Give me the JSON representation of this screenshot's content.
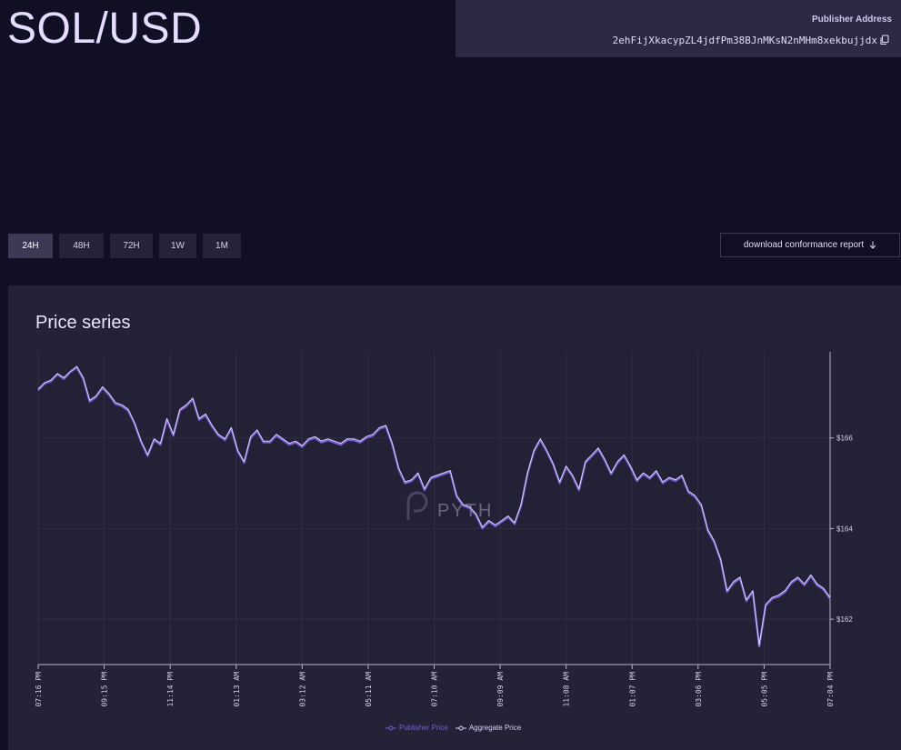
{
  "header": {
    "title": "SOL/USD",
    "publisher_label": "Publisher Address",
    "publisher_address": "2ehFijXkacypZL4jdfPm38BJnMKsN2nMHm8xekbujjdx",
    "copy_icon": "copy-icon"
  },
  "time_ranges": [
    {
      "label": "24H",
      "active": true
    },
    {
      "label": "48H",
      "active": false
    },
    {
      "label": "72H",
      "active": false
    },
    {
      "label": "1W",
      "active": false
    },
    {
      "label": "1M",
      "active": false
    }
  ],
  "download_button": {
    "label": "download conformance report",
    "icon": "arrow-down-icon"
  },
  "panel": {
    "title": "Price series"
  },
  "watermark": {
    "text": "PYTH",
    "icon": "pyth-logo-icon"
  },
  "colors": {
    "publisher": "#7a5fd6",
    "aggregate": "#d9d2ff",
    "grid": "#302e45"
  },
  "chart_data": {
    "type": "line",
    "x_tick_labels": [
      "07:16 PM",
      "09:15 PM",
      "11:14 PM",
      "01:13 AM",
      "03:12 AM",
      "05:11 AM",
      "07:10 AM",
      "09:09 AM",
      "11:08 AM",
      "01:07 PM",
      "03:06 PM",
      "05:05 PM",
      "07:04 PM"
    ],
    "y_ticks": [
      162,
      164,
      166
    ],
    "y_tick_labels": [
      "$162",
      "$164",
      "$166"
    ],
    "ylim": [
      161,
      167.9
    ],
    "grid": true,
    "legend_placement": "bottom-center",
    "series": [
      {
        "name": "Publisher Price",
        "values": [
          167.05,
          167.2,
          167.25,
          167.4,
          167.3,
          167.45,
          167.55,
          167.3,
          166.8,
          166.9,
          167.1,
          166.95,
          166.75,
          166.7,
          166.6,
          166.3,
          165.9,
          165.6,
          165.95,
          165.85,
          166.4,
          166.05,
          166.6,
          166.7,
          166.85,
          166.4,
          166.5,
          166.25,
          166.05,
          165.95,
          166.2,
          165.7,
          165.45,
          166.0,
          166.15,
          165.9,
          165.9,
          166.05,
          165.95,
          165.85,
          165.9,
          165.8,
          165.95,
          166.0,
          165.9,
          165.95,
          165.9,
          165.85,
          165.95,
          165.95,
          165.9,
          166.0,
          166.05,
          166.2,
          166.25,
          165.85,
          165.3,
          165.0,
          165.05,
          165.2,
          164.85,
          165.1,
          165.15,
          165.2,
          165.25,
          164.7,
          164.5,
          164.45,
          164.3,
          164.0,
          164.15,
          164.05,
          164.15,
          164.25,
          164.1,
          164.5,
          165.2,
          165.7,
          165.95,
          165.7,
          165.4,
          165.0,
          165.35,
          165.15,
          164.85,
          165.45,
          165.6,
          165.75,
          165.5,
          165.2,
          165.45,
          165.6,
          165.35,
          165.05,
          165.2,
          165.1,
          165.25,
          165.0,
          165.1,
          165.05,
          165.15,
          164.8,
          164.7,
          164.5,
          163.95,
          163.7,
          163.3,
          162.6,
          162.8,
          162.9,
          162.4,
          162.6,
          161.4,
          162.3,
          162.45,
          162.5,
          162.6,
          162.8,
          162.9,
          162.75,
          162.95,
          162.75,
          162.65,
          162.45
        ]
      },
      {
        "name": "Aggregate Price",
        "values": [
          167.08,
          167.22,
          167.28,
          167.42,
          167.33,
          167.47,
          167.58,
          167.33,
          166.83,
          166.93,
          167.13,
          166.98,
          166.78,
          166.73,
          166.63,
          166.33,
          165.93,
          165.63,
          165.98,
          165.88,
          166.43,
          166.08,
          166.63,
          166.73,
          166.88,
          166.43,
          166.53,
          166.28,
          166.08,
          165.98,
          166.23,
          165.73,
          165.48,
          166.03,
          166.18,
          165.93,
          165.93,
          166.08,
          165.98,
          165.88,
          165.93,
          165.83,
          165.98,
          166.03,
          165.93,
          165.98,
          165.93,
          165.88,
          165.98,
          165.98,
          165.93,
          166.03,
          166.08,
          166.23,
          166.28,
          165.88,
          165.33,
          165.03,
          165.08,
          165.23,
          164.88,
          165.13,
          165.18,
          165.23,
          165.28,
          164.73,
          164.53,
          164.48,
          164.33,
          164.03,
          164.18,
          164.08,
          164.18,
          164.28,
          164.13,
          164.53,
          165.23,
          165.73,
          165.98,
          165.73,
          165.43,
          165.03,
          165.38,
          165.18,
          164.88,
          165.48,
          165.63,
          165.78,
          165.53,
          165.23,
          165.48,
          165.63,
          165.38,
          165.08,
          165.23,
          165.13,
          165.28,
          165.03,
          165.13,
          165.08,
          165.18,
          164.83,
          164.73,
          164.53,
          163.98,
          163.73,
          163.33,
          162.63,
          162.83,
          162.93,
          162.43,
          162.63,
          161.43,
          162.33,
          162.48,
          162.53,
          162.63,
          162.83,
          162.93,
          162.78,
          162.98,
          162.78,
          162.68,
          162.48
        ]
      }
    ]
  }
}
